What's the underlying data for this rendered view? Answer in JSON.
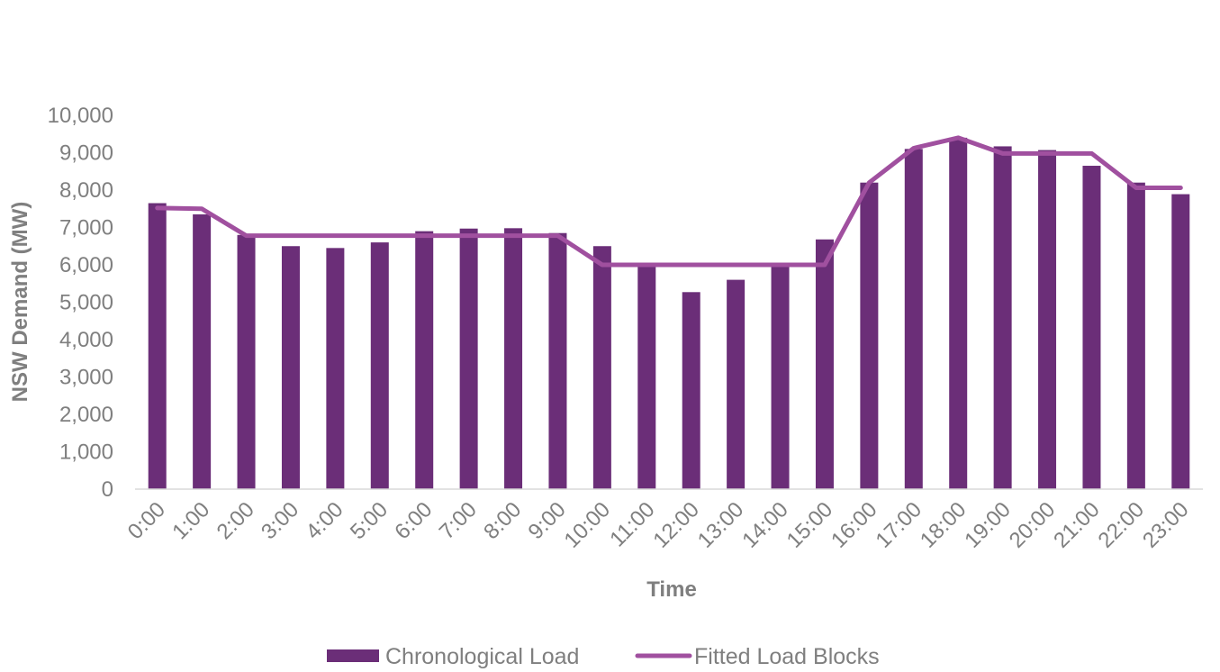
{
  "chart_data": {
    "type": "bar",
    "title": "",
    "xlabel": "Time",
    "ylabel": "NSW Demand (MW)",
    "ylim": [
      0,
      10000
    ],
    "yticks": [
      "0",
      "1,000",
      "2,000",
      "3,000",
      "4,000",
      "5,000",
      "6,000",
      "7,000",
      "8,000",
      "9,000",
      "10,000"
    ],
    "categories": [
      "0:00",
      "1:00",
      "2:00",
      "3:00",
      "4:00",
      "5:00",
      "6:00",
      "7:00",
      "8:00",
      "9:00",
      "10:00",
      "11:00",
      "12:00",
      "13:00",
      "14:00",
      "15:00",
      "16:00",
      "17:00",
      "18:00",
      "19:00",
      "20:00",
      "21:00",
      "22:00",
      "23:00"
    ],
    "series": [
      {
        "name": "Chronological Load",
        "type": "bar",
        "color": "#6b2e78",
        "values": [
          7650,
          7350,
          6800,
          6500,
          6450,
          6600,
          6900,
          6970,
          6980,
          6850,
          6500,
          5950,
          5270,
          5600,
          6000,
          6680,
          8200,
          9100,
          9400,
          9170,
          9070,
          8650,
          8200,
          7890
        ]
      },
      {
        "name": "Fitted Load Blocks",
        "type": "line",
        "color": "#a0509f",
        "values": [
          7520,
          7500,
          6780,
          6780,
          6780,
          6780,
          6780,
          6780,
          6780,
          6780,
          6000,
          6000,
          6000,
          6000,
          6000,
          6000,
          8200,
          9120,
          9400,
          8980,
          8980,
          8980,
          8060,
          8060
        ]
      }
    ],
    "grid": false,
    "legend": "bottom"
  }
}
